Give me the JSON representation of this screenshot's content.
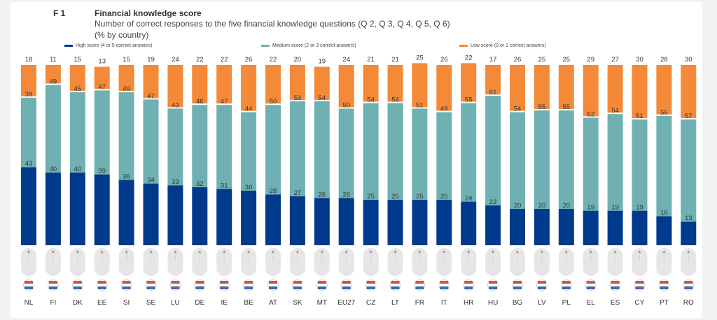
{
  "figure": {
    "number": "F 1",
    "title": "Financial knowledge score",
    "subtitle": "Number of correct responses to the five financial knowledge questions (Q 2, Q 3, Q 4, Q 5, Q 6)",
    "note": "(% by country)"
  },
  "legend": {
    "high": "High score (4 or 5 correct answers)",
    "medium": "Medium score (2 or 3 correct answers)",
    "low": "Low score (0 or 1 correct answers)"
  },
  "colors": {
    "high": "#003a8c",
    "medium": "#6fb1b3",
    "low": "#f48a38",
    "background": "#f2f2f2"
  },
  "icons": {
    "flag": "country-flag-icon",
    "connector": "dotted-connector-icon"
  },
  "chart_data": {
    "type": "bar",
    "stacked": true,
    "ylim": [
      0,
      100
    ],
    "grid": false,
    "legend_position": "top",
    "categories": [
      "NL",
      "FI",
      "DK",
      "EE",
      "SI",
      "SE",
      "LU",
      "DE",
      "IE",
      "BE",
      "AT",
      "SK",
      "MT",
      "EU27",
      "CZ",
      "LT",
      "FR",
      "IT",
      "HR",
      "HU",
      "BG",
      "LV",
      "PL",
      "EL",
      "ES",
      "CY",
      "PT",
      "RO"
    ],
    "series": [
      {
        "name": "High score (4 or 5 correct answers)",
        "key": "high",
        "values": [
          43,
          40,
          40,
          39,
          36,
          34,
          33,
          32,
          31,
          30,
          28,
          27,
          26,
          26,
          25,
          25,
          25,
          25,
          24,
          22,
          20,
          20,
          20,
          19,
          19,
          19,
          16,
          13
        ]
      },
      {
        "name": "Medium score (2 or 3 correct answers)",
        "key": "medium",
        "values": [
          39,
          49,
          45,
          47,
          49,
          47,
          43,
          46,
          47,
          44,
          50,
          53,
          54,
          50,
          54,
          54,
          51,
          49,
          55,
          61,
          54,
          55,
          55,
          52,
          54,
          51,
          56,
          57
        ]
      },
      {
        "name": "Low score (0 or 1 correct answers)",
        "key": "low",
        "values": [
          18,
          11,
          15,
          13,
          15,
          19,
          24,
          22,
          22,
          26,
          22,
          20,
          19,
          24,
          21,
          21,
          25,
          26,
          22,
          17,
          26,
          25,
          25,
          29,
          27,
          30,
          28,
          30
        ]
      }
    ]
  }
}
